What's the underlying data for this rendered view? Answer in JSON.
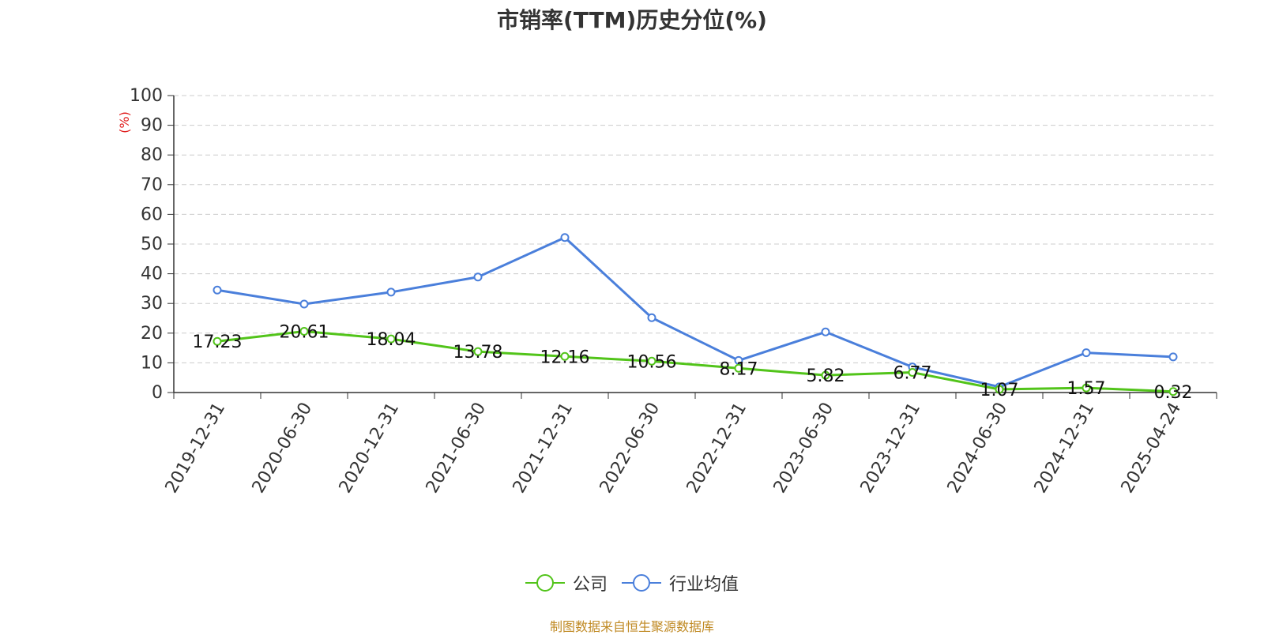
{
  "chart_data": {
    "type": "line",
    "title": "市销率(TTM)历史分位(%)",
    "ylabel": "(%)",
    "xlabel": "",
    "ylim": [
      0,
      100
    ],
    "yticks": [
      0,
      10,
      20,
      30,
      40,
      50,
      60,
      70,
      80,
      90,
      100
    ],
    "categories": [
      "2019-12-31",
      "2020-06-30",
      "2020-12-31",
      "2021-06-30",
      "2021-12-31",
      "2022-06-30",
      "2022-12-31",
      "2023-06-30",
      "2023-12-31",
      "2024-06-30",
      "2024-12-31",
      "2025-04-24"
    ],
    "grid": true,
    "legend_position": "bottom",
    "series": [
      {
        "name": "公司",
        "color": "#52c41a",
        "values": [
          17.23,
          20.61,
          18.04,
          13.78,
          12.16,
          10.56,
          8.17,
          5.82,
          6.77,
          1.07,
          1.57,
          0.32
        ],
        "data_labels": [
          "17.23",
          "20.61",
          "18.04",
          "13.78",
          "12.16",
          "10.56",
          "8.17",
          "5.82",
          "6.77",
          "1.07",
          "1.57",
          "0.32"
        ]
      },
      {
        "name": "行业均值",
        "color": "#4a7fdb",
        "values": [
          34.5,
          29.8,
          33.8,
          38.9,
          52.2,
          25.2,
          10.8,
          20.4,
          8.6,
          1.9,
          13.4,
          12.0
        ]
      }
    ]
  },
  "source": "制图数据来自恒生聚源数据库"
}
